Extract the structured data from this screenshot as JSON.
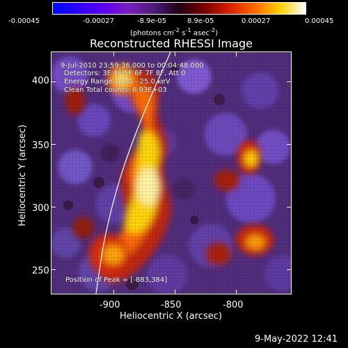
{
  "colorbar": {
    "ticks": [
      "-0.00045",
      "-0.00027",
      "-8.9e-05",
      "8.9e-05",
      "0.00027",
      "0.00045"
    ],
    "units_prefix": "(photons cm",
    "units_exp1": "-2",
    "units_mid1": " s",
    "units_exp2": "-1",
    "units_mid2": " asec",
    "units_exp3": "-2",
    "units_suffix": ")"
  },
  "image": {
    "title": "Reconstructed RHESSI Image",
    "time_range": "9-Jul-2010 23:59:36.000 to 00:04:48.000",
    "detectors": "Detectors: 3F 4F 5F 6F 7F 8F, Att 0",
    "energy_range": "Energy Range: 12.0 - 25.0 keV",
    "method_counts": "Clean     Total counts: 6.93E+03",
    "peak_position": "Position of Peak = [-883,384]"
  },
  "axes": {
    "x_title": "Heliocentric X (arcsec)",
    "y_title": "Heliocentric Y (arcsec)",
    "x_ticks": [
      "-900",
      "-850",
      "-800"
    ],
    "y_ticks": [
      "400",
      "350",
      "300",
      "250"
    ]
  },
  "footer": {
    "date_time": "9-May-2022 12:41"
  }
}
